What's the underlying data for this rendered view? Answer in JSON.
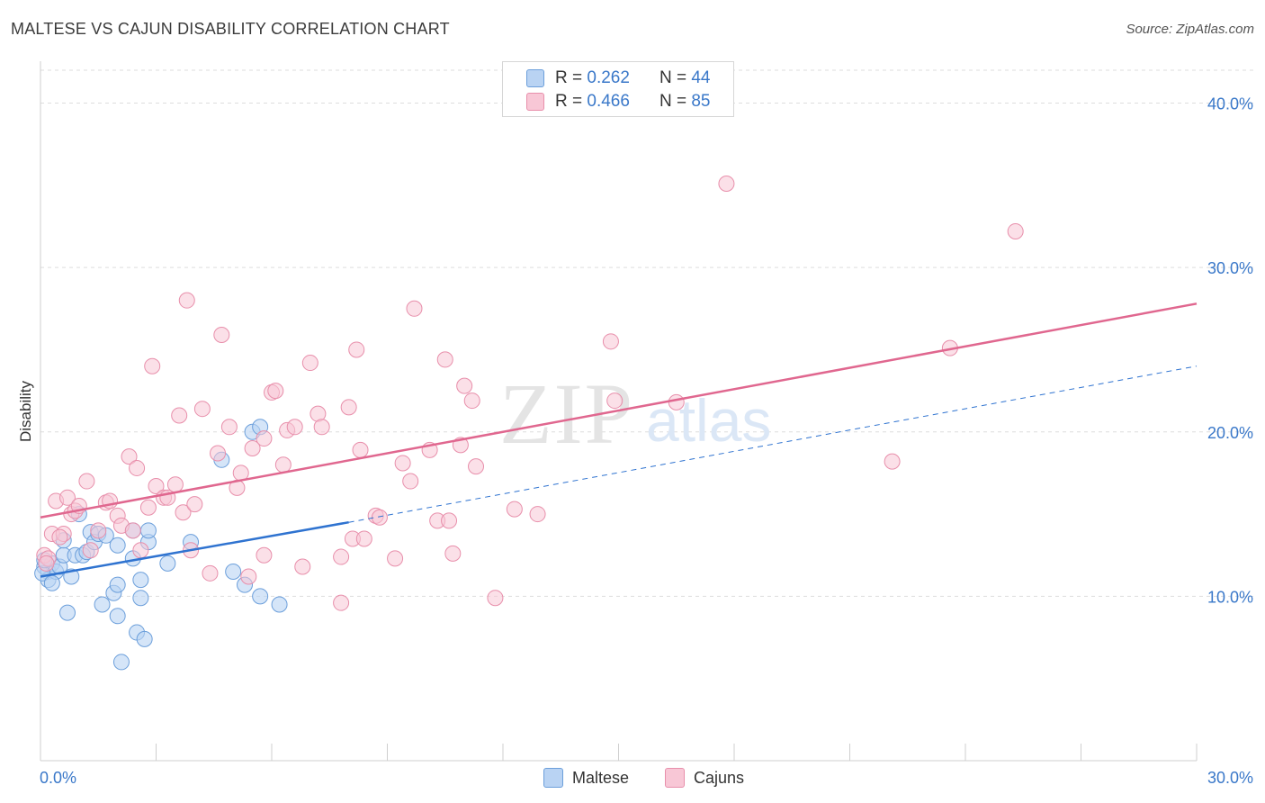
{
  "title": "MALTESE VS CAJUN DISABILITY CORRELATION CHART",
  "source": "Source: ZipAtlas.com",
  "watermark": {
    "zip": "ZIP",
    "atlas": "atlas"
  },
  "legend_top": [
    {
      "r_label": "R =",
      "r_value": "0.262",
      "n_label": "N =",
      "n_value": "44"
    },
    {
      "r_label": "R =",
      "r_value": "0.466",
      "n_label": "N =",
      "n_value": "85"
    }
  ],
  "legend_bottom": [
    "Maltese",
    "Cajuns"
  ],
  "colors": {
    "maltese_fill": "#b9d3f3",
    "maltese_stroke": "#6c9fdb",
    "maltese_line": "#2f73d0",
    "cajun_fill": "#f8c7d6",
    "cajun_stroke": "#e88fab",
    "cajun_line": "#e0678f",
    "axis_label": "#3a78c9",
    "grid": "#dddddd"
  },
  "chart_data": {
    "type": "scatter",
    "title": "MALTESE VS CAJUN DISABILITY CORRELATION CHART",
    "xlabel": "",
    "ylabel": "Disability",
    "xlim": [
      0,
      30
    ],
    "ylim": [
      0,
      42
    ],
    "x_tick_labels": [
      {
        "value": 0,
        "label": "0.0%"
      },
      {
        "value": 30,
        "label": "30.0%"
      }
    ],
    "y_tick_labels": [
      {
        "value": 10,
        "label": "10.0%"
      },
      {
        "value": 20,
        "label": "20.0%"
      },
      {
        "value": 30,
        "label": "30.0%"
      },
      {
        "value": 40,
        "label": "40.0%"
      }
    ],
    "grid": true,
    "series": [
      {
        "name": "Maltese",
        "r": 0.262,
        "n": 44,
        "trend": {
          "x0": 0,
          "y0": 11.2,
          "x1": 8.0,
          "y1": 14.5,
          "dash_to_x": 30,
          "dash_to_y": 24.0
        },
        "points": [
          [
            0.1,
            11.8
          ],
          [
            0.2,
            11.5
          ],
          [
            0.2,
            11.0
          ],
          [
            0.3,
            12.0
          ],
          [
            0.4,
            11.5
          ],
          [
            0.5,
            11.8
          ],
          [
            0.6,
            12.5
          ],
          [
            0.6,
            13.4
          ],
          [
            0.7,
            9.0
          ],
          [
            0.8,
            11.2
          ],
          [
            0.9,
            12.5
          ],
          [
            1.0,
            15.0
          ],
          [
            1.1,
            12.5
          ],
          [
            1.2,
            12.7
          ],
          [
            1.3,
            13.9
          ],
          [
            1.4,
            13.3
          ],
          [
            1.5,
            13.8
          ],
          [
            1.6,
            9.5
          ],
          [
            1.7,
            13.7
          ],
          [
            1.9,
            10.2
          ],
          [
            2.0,
            10.7
          ],
          [
            2.0,
            13.1
          ],
          [
            2.0,
            8.8
          ],
          [
            2.1,
            6.0
          ],
          [
            2.4,
            14.0
          ],
          [
            2.4,
            12.3
          ],
          [
            2.5,
            7.8
          ],
          [
            2.6,
            9.9
          ],
          [
            2.6,
            11.0
          ],
          [
            2.7,
            7.4
          ],
          [
            2.8,
            13.3
          ],
          [
            2.8,
            14.0
          ],
          [
            3.3,
            12.0
          ],
          [
            3.9,
            13.3
          ],
          [
            4.7,
            18.3
          ],
          [
            5.0,
            11.5
          ],
          [
            5.3,
            10.7
          ],
          [
            5.5,
            20.0
          ],
          [
            5.7,
            20.3
          ],
          [
            5.7,
            10.0
          ],
          [
            6.2,
            9.5
          ],
          [
            0.05,
            11.4
          ],
          [
            0.1,
            12.2
          ],
          [
            0.3,
            10.8
          ]
        ]
      },
      {
        "name": "Cajuns",
        "r": 0.466,
        "n": 85,
        "trend": {
          "x0": 0,
          "y0": 14.8,
          "x1": 30,
          "y1": 27.8
        },
        "points": [
          [
            0.1,
            12.5
          ],
          [
            0.2,
            12.3
          ],
          [
            0.3,
            13.8
          ],
          [
            0.4,
            15.8
          ],
          [
            0.6,
            13.8
          ],
          [
            0.7,
            16.0
          ],
          [
            0.8,
            15.0
          ],
          [
            0.9,
            15.2
          ],
          [
            1.0,
            15.5
          ],
          [
            1.2,
            17.0
          ],
          [
            1.3,
            12.8
          ],
          [
            1.5,
            14.0
          ],
          [
            1.7,
            15.7
          ],
          [
            1.8,
            15.8
          ],
          [
            2.0,
            14.9
          ],
          [
            2.1,
            14.3
          ],
          [
            2.3,
            18.5
          ],
          [
            2.4,
            14.0
          ],
          [
            2.5,
            17.8
          ],
          [
            2.6,
            12.8
          ],
          [
            2.8,
            15.4
          ],
          [
            2.9,
            24.0
          ],
          [
            3.0,
            16.7
          ],
          [
            3.2,
            16.0
          ],
          [
            3.3,
            16.0
          ],
          [
            3.5,
            16.8
          ],
          [
            3.6,
            21.0
          ],
          [
            3.7,
            15.1
          ],
          [
            3.8,
            28.0
          ],
          [
            3.9,
            12.8
          ],
          [
            4.0,
            15.6
          ],
          [
            4.2,
            21.4
          ],
          [
            4.4,
            11.4
          ],
          [
            4.6,
            18.7
          ],
          [
            4.7,
            25.9
          ],
          [
            4.9,
            20.3
          ],
          [
            5.1,
            16.6
          ],
          [
            5.2,
            17.5
          ],
          [
            5.4,
            11.2
          ],
          [
            5.5,
            19.0
          ],
          [
            5.8,
            12.5
          ],
          [
            5.8,
            19.6
          ],
          [
            6.0,
            22.4
          ],
          [
            6.1,
            22.5
          ],
          [
            6.3,
            18.0
          ],
          [
            6.4,
            20.1
          ],
          [
            6.6,
            20.3
          ],
          [
            6.8,
            11.8
          ],
          [
            7.0,
            24.2
          ],
          [
            7.2,
            21.1
          ],
          [
            7.3,
            20.3
          ],
          [
            7.8,
            9.6
          ],
          [
            7.8,
            12.4
          ],
          [
            8.0,
            21.5
          ],
          [
            8.1,
            13.5
          ],
          [
            8.2,
            25.0
          ],
          [
            8.3,
            18.9
          ],
          [
            8.4,
            13.5
          ],
          [
            8.7,
            14.9
          ],
          [
            8.8,
            14.8
          ],
          [
            9.2,
            12.3
          ],
          [
            9.4,
            18.1
          ],
          [
            9.6,
            17.0
          ],
          [
            9.7,
            27.5
          ],
          [
            10.1,
            18.9
          ],
          [
            10.3,
            14.6
          ],
          [
            10.5,
            24.4
          ],
          [
            10.6,
            14.6
          ],
          [
            10.7,
            12.6
          ],
          [
            10.9,
            19.2
          ],
          [
            11.0,
            22.8
          ],
          [
            11.2,
            21.9
          ],
          [
            11.3,
            17.9
          ],
          [
            11.8,
            9.9
          ],
          [
            12.3,
            15.3
          ],
          [
            12.9,
            15.0
          ],
          [
            14.8,
            25.5
          ],
          [
            14.9,
            21.9
          ],
          [
            16.5,
            21.8
          ],
          [
            17.8,
            35.1
          ],
          [
            22.1,
            18.2
          ],
          [
            23.6,
            25.1
          ],
          [
            25.3,
            32.2
          ],
          [
            0.15,
            12.0
          ],
          [
            0.5,
            13.6
          ]
        ]
      }
    ]
  }
}
